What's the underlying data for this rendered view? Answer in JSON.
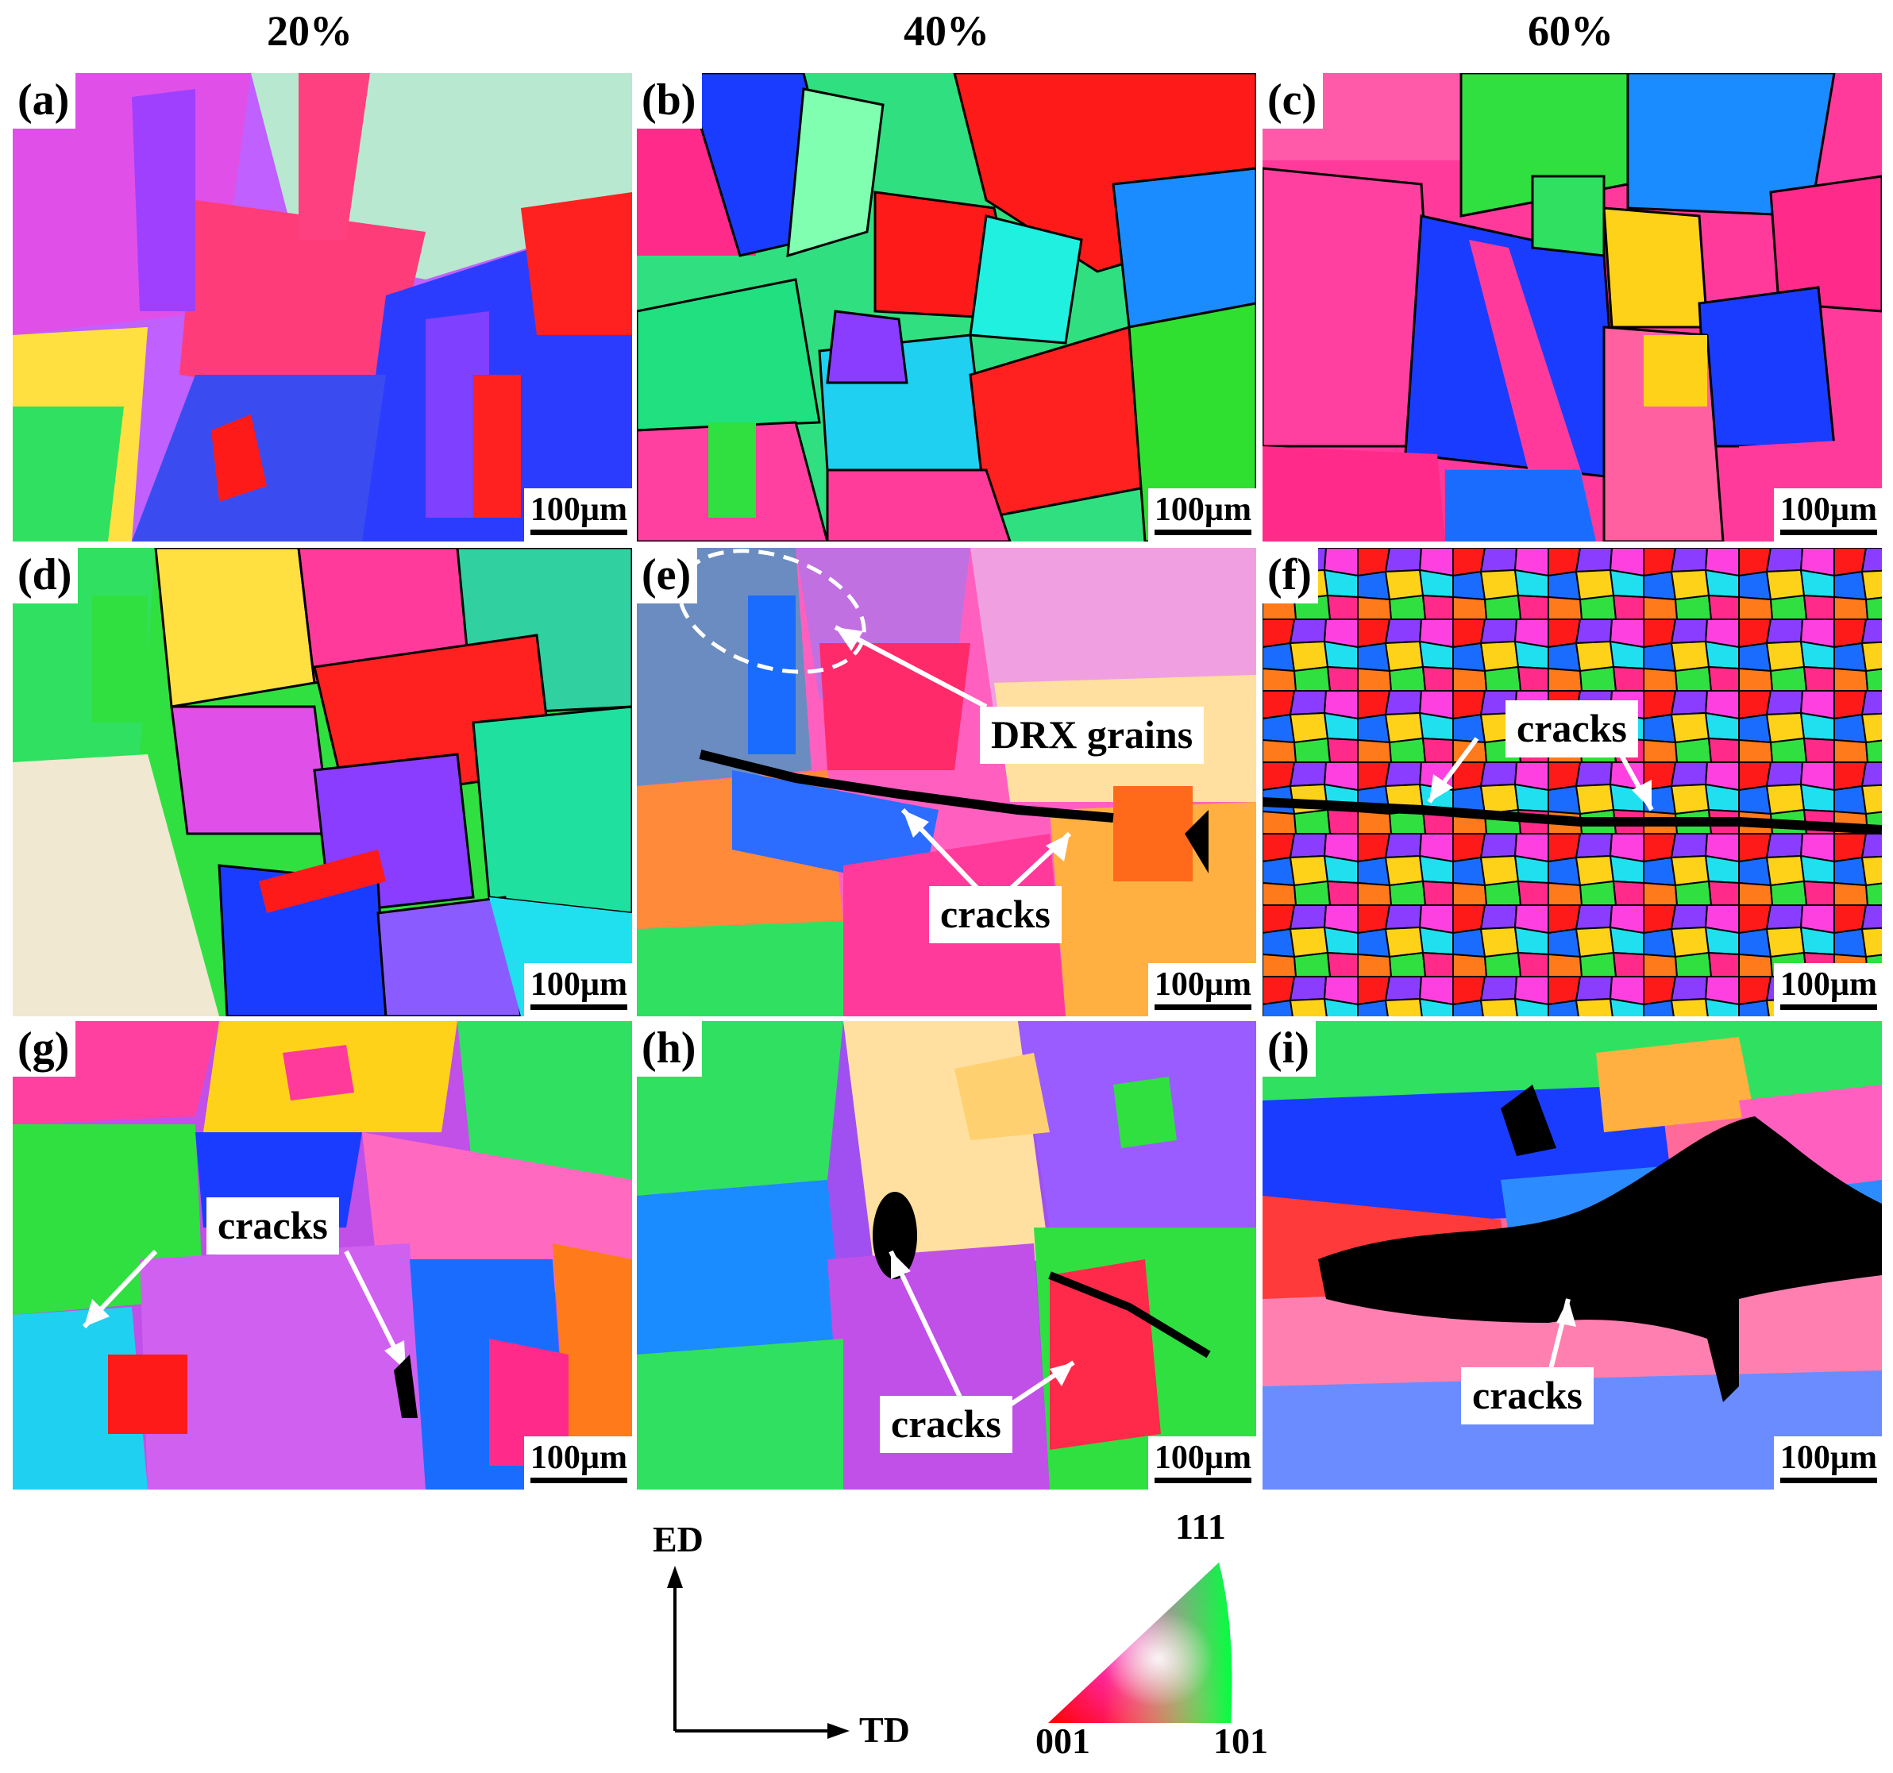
{
  "column_headers": [
    "20%",
    "40%",
    "60%"
  ],
  "panels": [
    {
      "label": "(a)",
      "scale": "100µm"
    },
    {
      "label": "(b)",
      "scale": "100µm"
    },
    {
      "label": "(c)",
      "scale": "100µm"
    },
    {
      "label": "(d)",
      "scale": "100µm"
    },
    {
      "label": "(e)",
      "scale": "100µm"
    },
    {
      "label": "(f)",
      "scale": "100µm"
    },
    {
      "label": "(g)",
      "scale": "100µm"
    },
    {
      "label": "(h)",
      "scale": "100µm"
    },
    {
      "label": "(i)",
      "scale": "100µm"
    }
  ],
  "annotations": {
    "drx": "DRX grains",
    "cracks": "cracks"
  },
  "axes": {
    "vertical": "ED",
    "horizontal": "TD"
  },
  "ipf_legend": {
    "top": "111",
    "bottom_left": "001",
    "bottom_right": "101"
  },
  "colors": {
    "red": "#ff1a1a",
    "pink": "#ff2a8a",
    "magenta": "#ff40e0",
    "violet": "#8a3cff",
    "blue": "#1a3cff",
    "cyan": "#20e0f0",
    "green": "#1aff4a",
    "yellow": "#ffd21a",
    "orange": "#ff7a1a"
  }
}
